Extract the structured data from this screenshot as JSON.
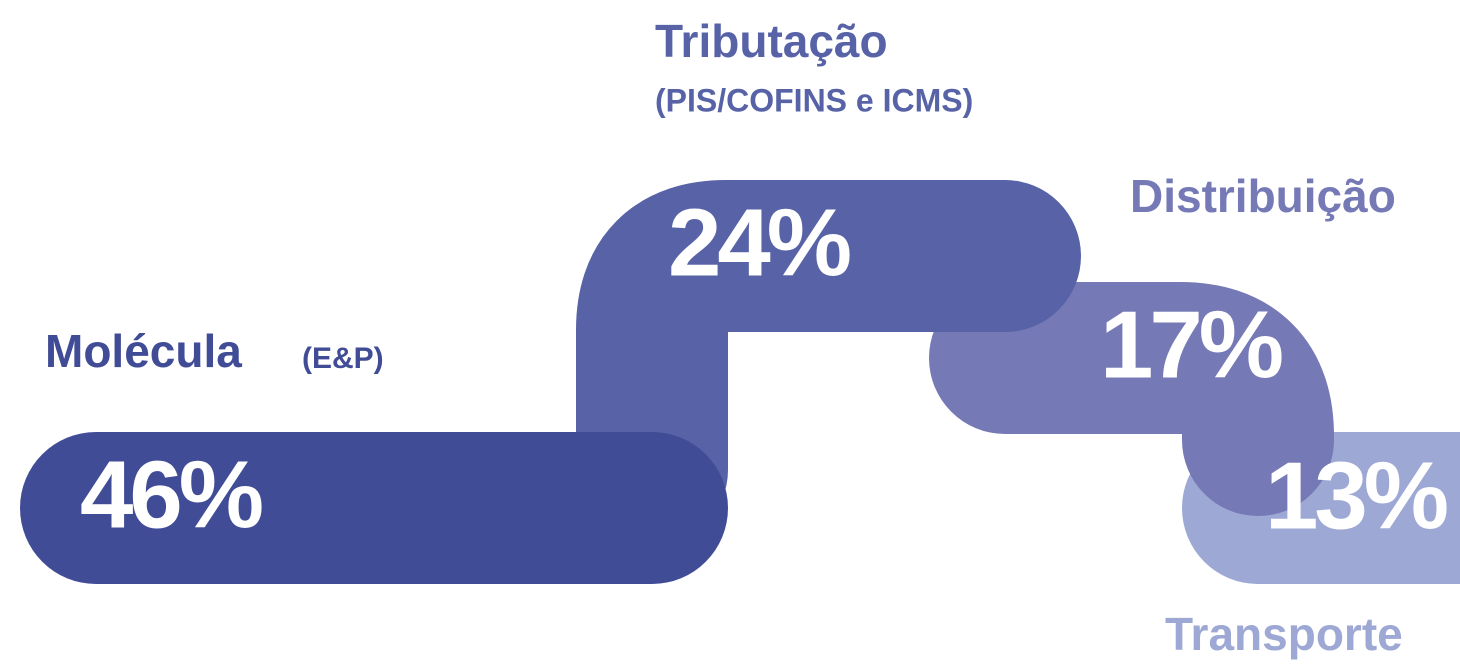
{
  "chart_data": {
    "type": "ribbon",
    "categories": [
      "Molécula",
      "Tributação",
      "Distribuição",
      "Transporte"
    ],
    "notes": {
      "0": "(E&P)",
      "1": "(PIS/COFINS e ICMS)"
    },
    "values": [
      46,
      24,
      17,
      13
    ],
    "value_labels": [
      "46%",
      "24%",
      "17%",
      "13%"
    ],
    "colors": [
      "#414c96",
      "#5763a6",
      "#7579b6",
      "#9da8d4"
    ]
  }
}
